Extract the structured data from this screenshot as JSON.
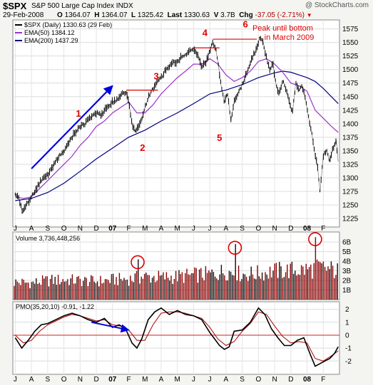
{
  "header": {
    "symbol": "$SPX",
    "name": "S&P 500 Large Cap Index INDX",
    "source": "@ StockCharts.com",
    "date": "29-Feb-2008",
    "open_label": "O",
    "open": "1364.07",
    "high_label": "H",
    "high": "1364.07",
    "low_label": "L",
    "low": "1325.42",
    "last_label": "Last",
    "last": "1330.63",
    "volume_label": "V",
    "volume": "3.7B",
    "change_label": "Chg",
    "change": "-37.05 (-2.71%)"
  },
  "colors": {
    "price": "#000000",
    "ema50": "#9933cc",
    "ema200": "#000080",
    "volume": "#8b0000",
    "pmo": "#000000",
    "pmo_signal": "#aa0000",
    "annotation": "#e00000",
    "arrow": "#0000e0",
    "panel_bg": "#ffffff",
    "page_bg": "#f4f4f0"
  },
  "chart_data": [
    {
      "type": "line",
      "panel": "price",
      "title": "$SPX (Daily) 1330.63 (29 Feb)",
      "legend": [
        {
          "label": "$SPX (Daily) 1330.63 (29 Feb)",
          "color": "#000000"
        },
        {
          "label": "EMA(50) 1384.12",
          "color": "#9933cc"
        },
        {
          "label": "EMA(200) 1437.29",
          "color": "#000080"
        }
      ],
      "x_labels": [
        "J",
        "A",
        "S",
        "O",
        "N",
        "D",
        "07",
        "F",
        "M",
        "A",
        "M",
        "J",
        "J",
        "A",
        "S",
        "O",
        "N",
        "D",
        "08",
        "F"
      ],
      "x_label_positions": [
        1,
        2,
        3,
        4,
        5,
        6,
        7,
        8,
        9,
        10,
        11,
        12,
        13,
        14,
        15,
        16,
        17,
        18,
        19,
        20
      ],
      "ylim": [
        1225,
        1585
      ],
      "y_ticks": [
        1225,
        1250,
        1275,
        1300,
        1325,
        1350,
        1375,
        1400,
        1425,
        1450,
        1475,
        1500,
        1525,
        1550,
        1575
      ],
      "series": [
        {
          "name": "$SPX (Daily) 1330.63 (29 Feb)",
          "x": [
            1.0,
            1.2,
            1.45,
            1.7,
            2.0,
            2.3,
            2.6,
            3.0,
            3.3,
            3.6,
            4.0,
            4.3,
            4.6,
            5.0,
            5.3,
            5.6,
            6.0,
            6.3,
            6.6,
            7.0,
            7.3,
            7.6,
            7.85,
            8.0,
            8.2,
            8.4,
            8.6,
            8.8,
            9.0,
            9.3,
            9.6,
            10.0,
            10.3,
            10.6,
            11.0,
            11.3,
            11.6,
            12.0,
            12.3,
            12.5,
            12.8,
            13.0,
            13.2,
            13.35,
            13.5,
            13.7,
            13.9,
            14.1,
            14.3,
            14.5,
            14.7,
            14.9,
            15.1,
            15.3,
            15.6,
            15.9,
            16.1,
            16.3,
            16.5,
            16.7,
            16.9,
            17.1,
            17.3,
            17.5,
            17.7,
            17.9,
            18.1,
            18.3,
            18.5,
            18.7,
            18.9,
            19.1,
            19.3,
            19.5,
            19.65,
            19.8,
            20.0,
            20.2,
            20.4,
            20.6,
            20.8,
            20.92
          ],
          "values": [
            1270,
            1265,
            1235,
            1250,
            1265,
            1280,
            1295,
            1305,
            1320,
            1335,
            1350,
            1365,
            1380,
            1395,
            1400,
            1410,
            1420,
            1415,
            1430,
            1440,
            1445,
            1455,
            1460,
            1440,
            1400,
            1385,
            1395,
            1405,
            1430,
            1455,
            1470,
            1485,
            1500,
            1510,
            1515,
            1525,
            1530,
            1540,
            1525,
            1505,
            1515,
            1535,
            1550,
            1540,
            1515,
            1470,
            1440,
            1455,
            1405,
            1440,
            1455,
            1465,
            1480,
            1495,
            1520,
            1540,
            1560,
            1550,
            1520,
            1500,
            1510,
            1470,
            1455,
            1480,
            1465,
            1440,
            1420,
            1475,
            1460,
            1470,
            1445,
            1410,
            1380,
            1340,
            1320,
            1275,
            1340,
            1350,
            1330,
            1355,
            1370,
            1330
          ]
        },
        {
          "name": "EMA(50) 1384.12",
          "x": [
            1.0,
            1.5,
            2.0,
            2.5,
            3.0,
            3.5,
            4.0,
            4.5,
            5.0,
            5.5,
            6.0,
            6.5,
            7.0,
            7.5,
            8.0,
            8.5,
            9.0,
            9.5,
            10.0,
            10.5,
            11.0,
            11.5,
            12.0,
            12.5,
            13.0,
            13.5,
            14.0,
            14.5,
            15.0,
            15.5,
            16.0,
            16.5,
            17.0,
            17.5,
            18.0,
            18.5,
            19.0,
            19.5,
            20.0,
            20.5,
            20.92
          ],
          "values": [
            1265,
            1262,
            1265,
            1280,
            1295,
            1310,
            1325,
            1340,
            1360,
            1375,
            1395,
            1405,
            1420,
            1430,
            1440,
            1420,
            1420,
            1435,
            1455,
            1470,
            1485,
            1497,
            1510,
            1510,
            1520,
            1510,
            1490,
            1478,
            1485,
            1497,
            1515,
            1520,
            1510,
            1495,
            1475,
            1470,
            1460,
            1425,
            1410,
            1395,
            1384
          ]
        },
        {
          "name": "EMA(200) 1437.29",
          "x": [
            1.0,
            2.0,
            3.0,
            4.0,
            5.0,
            6.0,
            7.0,
            8.0,
            9.0,
            10.0,
            11.0,
            12.0,
            13.0,
            14.0,
            15.0,
            16.0,
            17.0,
            17.5,
            18.0,
            18.5,
            19.0,
            19.5,
            20.0,
            20.5,
            20.92
          ],
          "values": [
            1258,
            1262,
            1273,
            1290,
            1312,
            1335,
            1355,
            1375,
            1388,
            1405,
            1420,
            1437,
            1455,
            1462,
            1472,
            1485,
            1494,
            1497,
            1495,
            1490,
            1485,
            1478,
            1465,
            1450,
            1437
          ]
        }
      ],
      "annotations": [
        {
          "label": "1",
          "x": 4.9,
          "y": 1413
        },
        {
          "label": "2",
          "x": 8.85,
          "y": 1350
        },
        {
          "label": "3",
          "x": 9.7,
          "y": 1482
        },
        {
          "label": "4",
          "x": 12.7,
          "y": 1562
        },
        {
          "label": "5",
          "x": 13.6,
          "y": 1368
        },
        {
          "label": "6",
          "x": 15.2,
          "y": 1578
        },
        {
          "label": "Peak until bottom",
          "x": 17.5,
          "y": 1572
        },
        {
          "label": "in March 2009",
          "x": 17.9,
          "y": 1555
        }
      ],
      "arrow": {
        "x1": 2.0,
        "y1": 1317,
        "x2": 7.0,
        "y2": 1470
      },
      "resistance_lines": [
        {
          "x1": 7.85,
          "x2": 9.8,
          "y": 1462
        },
        {
          "x1": 12.0,
          "x2": 13.6,
          "y": 1540
        },
        {
          "x1": 13.2,
          "x2": 15.9,
          "y": 1556
        }
      ]
    },
    {
      "type": "bar",
      "panel": "volume",
      "title": "Volume 3,736,448,256",
      "ylim": [
        0,
        6.6
      ],
      "y_ticks": [
        1,
        2,
        3,
        4,
        5,
        6
      ],
      "y_tick_labels": [
        "1B",
        "2B",
        "3B",
        "4B",
        "5B",
        "6B"
      ],
      "baseline_billions": 2.4,
      "envelope": {
        "x": [
          1.0,
          2.0,
          3.0,
          4.0,
          5.0,
          6.0,
          7.0,
          8.0,
          9.0,
          10.0,
          11.0,
          12.0,
          13.0,
          14.0,
          15.0,
          16.0,
          17.0,
          18.0,
          19.0,
          20.0,
          20.92
        ],
        "values": [
          2.2,
          2.1,
          2.4,
          2.5,
          2.4,
          2.3,
          2.5,
          2.6,
          2.9,
          2.8,
          2.9,
          3.1,
          3.2,
          3.6,
          3.2,
          3.3,
          3.6,
          3.7,
          3.8,
          4.0,
          3.6
        ]
      },
      "spikes": [
        {
          "x": 8.55,
          "value": 4.2
        },
        {
          "x": 14.55,
          "value": 5.8
        },
        {
          "x": 19.5,
          "value": 6.5
        }
      ],
      "circles": [
        {
          "x": 8.55,
          "y": 3.9
        },
        {
          "x": 14.55,
          "y": 5.4
        },
        {
          "x": 19.5,
          "y": 6.3
        }
      ]
    },
    {
      "type": "line",
      "panel": "pmo",
      "title": "PMO(35,20,10) -0.91, -1.22",
      "ylim": [
        -2.7,
        2.2
      ],
      "y_ticks": [
        -2,
        -1,
        0,
        1,
        2
      ],
      "zero_line": 0,
      "series": [
        {
          "name": "PMO(35,20,10) -0.91",
          "x": [
            1.0,
            1.4,
            1.8,
            2.2,
            2.6,
            3.0,
            3.5,
            4.0,
            4.5,
            5.0,
            5.5,
            6.0,
            6.5,
            7.0,
            7.4,
            7.8,
            8.2,
            8.5,
            8.8,
            9.2,
            9.6,
            10.0,
            10.5,
            11.0,
            11.5,
            12.0,
            12.5,
            13.0,
            13.3,
            13.6,
            13.9,
            14.2,
            14.5,
            15.0,
            15.5,
            16.0,
            16.4,
            16.8,
            17.2,
            17.6,
            18.0,
            18.4,
            18.8,
            19.2,
            19.5,
            19.8,
            20.1,
            20.4,
            20.7,
            20.92
          ],
          "values": [
            -0.2,
            -1.0,
            -0.4,
            0.3,
            0.8,
            0.9,
            1.2,
            1.5,
            1.7,
            1.5,
            1.2,
            1.0,
            1.3,
            0.6,
            0.8,
            0.5,
            -0.6,
            -1.0,
            -0.3,
            1.2,
            1.8,
            2.1,
            1.6,
            1.9,
            1.6,
            1.5,
            1.2,
            0.2,
            -0.3,
            -0.8,
            -1.1,
            -0.9,
            0.3,
            0.4,
            1.0,
            2.1,
            1.6,
            0.5,
            -0.2,
            -0.8,
            -0.8,
            -0.4,
            -0.2,
            -1.5,
            -2.4,
            -2.2,
            -2.0,
            -1.8,
            -1.4,
            -0.9
          ]
        },
        {
          "name": "Signal -1.22",
          "x": [
            1.0,
            1.5,
            2.0,
            2.5,
            3.0,
            3.5,
            4.0,
            4.5,
            5.0,
            5.5,
            6.0,
            6.5,
            7.0,
            7.5,
            8.0,
            8.5,
            9.0,
            9.5,
            10.0,
            10.5,
            11.0,
            11.5,
            12.0,
            12.5,
            13.0,
            13.5,
            14.0,
            14.5,
            15.0,
            15.5,
            16.0,
            16.5,
            17.0,
            17.5,
            18.0,
            18.5,
            19.0,
            19.5,
            20.0,
            20.5,
            20.92
          ],
          "values": [
            0.0,
            -0.6,
            -0.4,
            0.3,
            0.8,
            1.1,
            1.4,
            1.6,
            1.5,
            1.3,
            1.1,
            1.2,
            0.8,
            0.7,
            0.4,
            -0.4,
            -0.4,
            0.8,
            1.7,
            1.8,
            1.8,
            1.7,
            1.5,
            1.3,
            0.6,
            -0.3,
            -0.8,
            -0.5,
            0.3,
            0.9,
            1.8,
            1.6,
            0.7,
            -0.1,
            -0.6,
            -0.5,
            -0.6,
            -1.8,
            -2.0,
            -1.6,
            -1.22
          ]
        }
      ],
      "arrow": {
        "x1": 5.7,
        "y1": 1.0,
        "x2": 8.0,
        "y2": 0.4
      },
      "x_labels": [
        "J",
        "A",
        "S",
        "O",
        "N",
        "D",
        "07",
        "F",
        "M",
        "A",
        "M",
        "J",
        "J",
        "A",
        "S",
        "O",
        "N",
        "D",
        "08",
        "F"
      ]
    }
  ]
}
